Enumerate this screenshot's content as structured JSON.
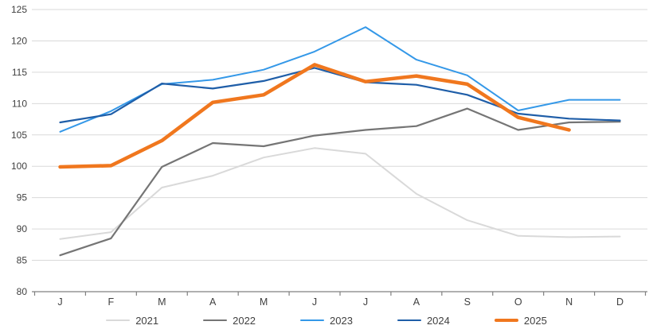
{
  "chart_data": {
    "type": "line",
    "title": "",
    "categories": [
      "J",
      "F",
      "M",
      "A",
      "M",
      "J",
      "J",
      "A",
      "S",
      "O",
      "N",
      "D"
    ],
    "y_ticks": [
      80,
      85,
      90,
      95,
      100,
      105,
      110,
      115,
      120,
      125
    ],
    "ylim": [
      80,
      125
    ],
    "grid": true,
    "legend_position": "bottom",
    "series": [
      {
        "name": "2021",
        "color": "#D9D9D9",
        "width": 2,
        "values": [
          88.4,
          89.5,
          96.6,
          98.5,
          101.4,
          102.9,
          102.0,
          95.6,
          91.4,
          88.9,
          88.7,
          88.8
        ]
      },
      {
        "name": "2022",
        "color": "#757575",
        "width": 2.2,
        "values": [
          85.8,
          88.5,
          99.9,
          103.7,
          103.2,
          104.9,
          105.8,
          106.4,
          109.2,
          105.8,
          107.0,
          107.1
        ]
      },
      {
        "name": "2023",
        "color": "#3498E8",
        "width": 2,
        "values": [
          105.5,
          108.8,
          113.1,
          113.8,
          115.4,
          118.3,
          122.2,
          117.0,
          114.5,
          108.9,
          110.6,
          110.6
        ]
      },
      {
        "name": "2024",
        "color": "#1F5EA8",
        "width": 2.2,
        "values": [
          107.0,
          108.3,
          113.2,
          112.4,
          113.6,
          115.7,
          113.4,
          113.0,
          111.4,
          108.4,
          107.6,
          107.3
        ]
      },
      {
        "name": "2025",
        "color": "#F0771E",
        "width": 4.5,
        "values": [
          99.9,
          100.1,
          104.1,
          110.2,
          111.4,
          116.2,
          113.5,
          114.4,
          113.1,
          107.8,
          105.8,
          null
        ]
      }
    ]
  },
  "axis_style": {
    "label_color": "#404040",
    "grid_color": "#D9D9D9",
    "axis_color": "#808080"
  }
}
